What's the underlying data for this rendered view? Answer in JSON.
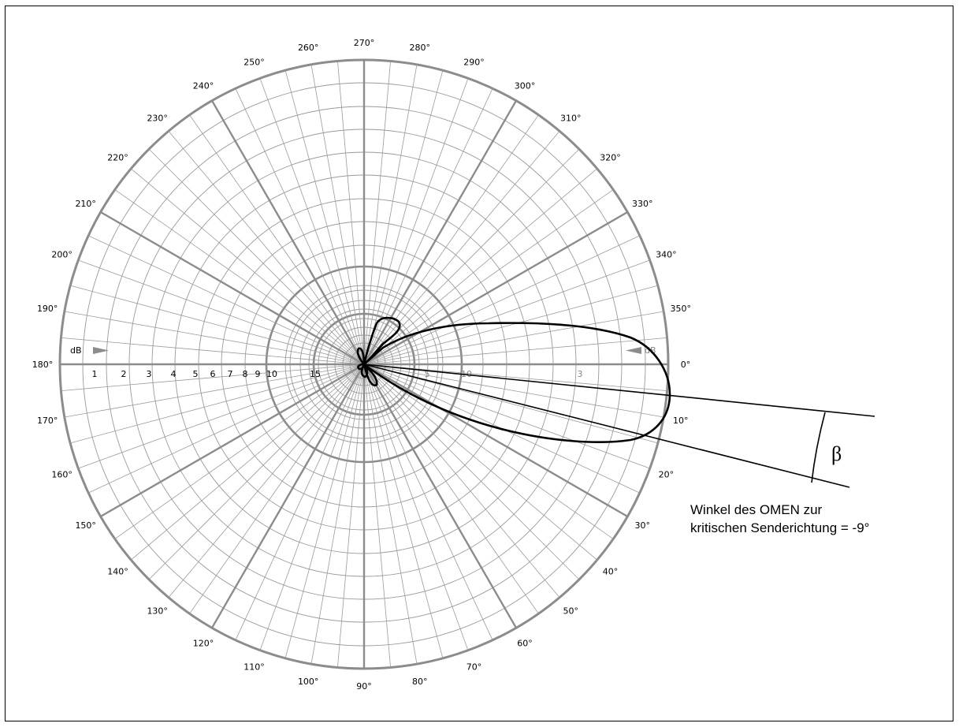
{
  "diagram": {
    "angle_labels": [
      "0°",
      "10°",
      "20°",
      "30°",
      "40°",
      "50°",
      "60°",
      "70°",
      "80°",
      "90°",
      "100°",
      "110°",
      "120°",
      "130°",
      "140°",
      "150°",
      "160°",
      "170°",
      "180°",
      "190°",
      "200°",
      "210°",
      "220°",
      "230°",
      "240°",
      "250°",
      "260°",
      "270°",
      "280°",
      "290°",
      "300°",
      "310°",
      "320°",
      "330°",
      "340°",
      "350°"
    ],
    "left_scale": {
      "unit": "dB",
      "ticks": [
        "1",
        "2",
        "3",
        "4",
        "5",
        "6",
        "7",
        "8",
        "9",
        "10",
        "15"
      ]
    },
    "right_scale": {
      "unit": "dB",
      "ticks": [
        "5",
        "10",
        "3"
      ]
    },
    "beta_symbol": "β",
    "annotation_line1": "Winkel des OMEN zur",
    "annotation_line2": "kritischen Senderichtung = -9°",
    "colors": {
      "grid": "#9a9a9a",
      "grid_major": "#8c8c8c",
      "pattern": "#000000",
      "arrow": "#8c8c8c"
    }
  }
}
